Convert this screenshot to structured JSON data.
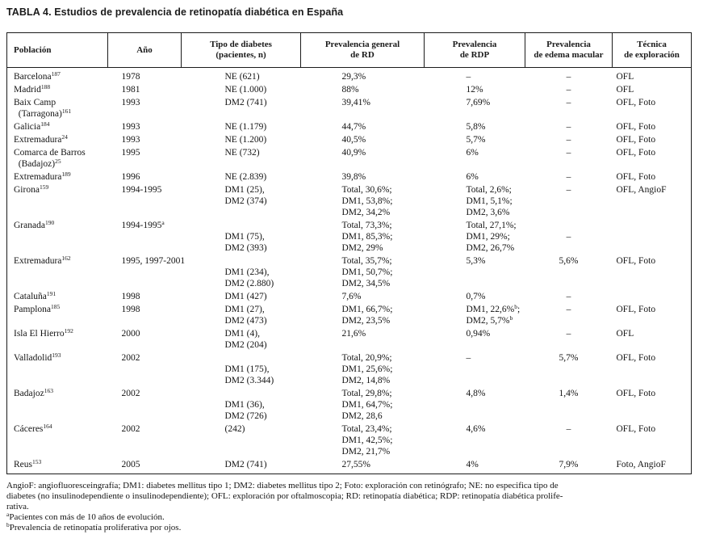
{
  "title": "TABLA 4. Estudios de prevalencia de retinopatía diabética en España",
  "table": {
    "columns": [
      {
        "id": "poblacion",
        "label_lines": [
          "Población"
        ]
      },
      {
        "id": "ano",
        "label_lines": [
          "Año"
        ]
      },
      {
        "id": "tipo",
        "label_lines": [
          "Tipo de diabetes",
          "(pacientes, n)"
        ]
      },
      {
        "id": "rd",
        "label_lines": [
          "Prevalencia general",
          "de RD"
        ]
      },
      {
        "id": "rdp",
        "label_lines": [
          "Prevalencia",
          "de RDP"
        ]
      },
      {
        "id": "edema",
        "label_lines": [
          "Prevalencia",
          "de edema macular"
        ]
      },
      {
        "id": "tecnica",
        "label_lines": [
          "Técnica",
          "de exploración"
        ]
      }
    ],
    "rows": [
      {
        "poblacion": [
          "Barcelona^{187}"
        ],
        "ano": [
          "1978"
        ],
        "tipo": [
          "NE (621)"
        ],
        "rd": [
          "29,3%"
        ],
        "rdp": [
          "–"
        ],
        "edema": [
          "–"
        ],
        "tecnica": [
          "OFL"
        ]
      },
      {
        "poblacion": [
          "Madrid^{188}"
        ],
        "ano": [
          "1981"
        ],
        "tipo": [
          "NE (1.000)"
        ],
        "rd": [
          "88%"
        ],
        "rdp": [
          "12%"
        ],
        "edema": [
          "–"
        ],
        "tecnica": [
          "OFL"
        ]
      },
      {
        "poblacion": [
          "Baix Camp",
          "  (Tarragona)^{161}"
        ],
        "ano": [
          "1993"
        ],
        "tipo": [
          "DM2 (741)"
        ],
        "rd": [
          "39,41%"
        ],
        "rdp": [
          "7,69%"
        ],
        "edema": [
          "–"
        ],
        "tecnica": [
          "OFL, Foto"
        ]
      },
      {
        "poblacion": [
          "Galicia^{184}"
        ],
        "ano": [
          "1993"
        ],
        "tipo": [
          "NE (1.179)"
        ],
        "rd": [
          "44,7%"
        ],
        "rdp": [
          "5,8%"
        ],
        "edema": [
          "–"
        ],
        "tecnica": [
          "OFL, Foto"
        ]
      },
      {
        "poblacion": [
          "Extremadura^{24}"
        ],
        "ano": [
          "1993"
        ],
        "tipo": [
          "NE (1.200)"
        ],
        "rd": [
          "40,5%"
        ],
        "rdp": [
          "5,7%"
        ],
        "edema": [
          "–"
        ],
        "tecnica": [
          "OFL, Foto"
        ]
      },
      {
        "poblacion": [
          "Comarca de Barros",
          "  (Badajoz)^{25}"
        ],
        "ano": [
          "1995"
        ],
        "tipo": [
          "NE (732)"
        ],
        "rd": [
          "40,9%"
        ],
        "rdp": [
          "6%"
        ],
        "edema": [
          "–"
        ],
        "tecnica": [
          "OFL, Foto"
        ]
      },
      {
        "poblacion": [
          "Extremadura^{189}"
        ],
        "ano": [
          "1996"
        ],
        "tipo": [
          "NE (2.839)"
        ],
        "rd": [
          "39,8%"
        ],
        "rdp": [
          "6%"
        ],
        "edema": [
          "–"
        ],
        "tecnica": [
          "OFL, Foto"
        ]
      },
      {
        "poblacion": [
          "Girona^{159}"
        ],
        "ano": [
          "1994-1995"
        ],
        "tipo": [
          "DM1 (25),",
          "DM2 (374)"
        ],
        "rd": [
          "Total, 30,6%;",
          "DM1, 53,8%;",
          "DM2, 34,2%"
        ],
        "rdp": [
          "Total, 2,6%;",
          "DM1, 5,1%;",
          "DM2, 3,6%"
        ],
        "edema": [
          "–"
        ],
        "tecnica": [
          "OFL, AngioF"
        ]
      },
      {
        "poblacion": [
          "Granada^{190}"
        ],
        "ano": [
          "1994-1995^{a}"
        ],
        "tipo": [
          "",
          "DM1 (75),",
          "DM2 (393)"
        ],
        "rd": [
          "Total, 73,3%;",
          "DM1, 85,3%;",
          "DM2, 29%"
        ],
        "rdp": [
          "Total, 27,1%;",
          "DM1, 29%;",
          "DM2, 26,7%"
        ],
        "edema": [
          "",
          "–"
        ],
        "tecnica": []
      },
      {
        "poblacion": [
          "Extremadura^{162}"
        ],
        "ano": [
          "1995, 1997-2001"
        ],
        "tipo": [
          "",
          "DM1 (234),",
          "DM2 (2.880)"
        ],
        "rd": [
          "Total, 35,7%;",
          "DM1, 50,7%;",
          "DM2, 34,5%"
        ],
        "rdp": [
          "5,3%"
        ],
        "edema": [
          "5,6%"
        ],
        "tecnica": [
          "OFL, Foto"
        ]
      },
      {
        "poblacion": [
          "Cataluña^{191}"
        ],
        "ano": [
          "1998"
        ],
        "tipo": [
          "DM1 (427)"
        ],
        "rd": [
          "7,6%"
        ],
        "rdp": [
          "0,7%"
        ],
        "edema": [
          "–"
        ],
        "tecnica": []
      },
      {
        "poblacion": [
          "Pamplona^{185}"
        ],
        "ano": [
          "1998"
        ],
        "tipo": [
          "DM1 (27),",
          "DM2 (473)"
        ],
        "rd": [
          "DM1, 66,7%;",
          "DM2, 23,5%"
        ],
        "rdp": [
          "DM1, 22,6%^{b};",
          "DM2, 5,7%^{b}"
        ],
        "edema": [
          "–"
        ],
        "tecnica": [
          "OFL, Foto"
        ]
      },
      {
        "poblacion": [
          "Isla El Hierro^{192}"
        ],
        "ano": [
          "2000"
        ],
        "tipo": [
          "DM1 (4),",
          "DM2 (204)"
        ],
        "rd": [
          "21,6%"
        ],
        "rdp": [
          "0,94%"
        ],
        "edema": [
          "–"
        ],
        "tecnica": [
          "OFL"
        ]
      },
      {
        "poblacion": [
          "Valladolid^{193}"
        ],
        "ano": [
          "2002"
        ],
        "tipo": [
          "",
          "DM1 (175),",
          "DM2 (3.344)"
        ],
        "rd": [
          "Total, 20,9%;",
          "DM1, 25,6%;",
          "DM2, 14,8%"
        ],
        "rdp": [
          "–"
        ],
        "edema": [
          "5,7%"
        ],
        "tecnica": [
          "OFL, Foto"
        ]
      },
      {
        "poblacion": [
          "Badajoz^{163}"
        ],
        "ano": [
          "2002"
        ],
        "tipo": [
          "",
          "DM1 (36),",
          "DM2 (726)"
        ],
        "rd": [
          "Total, 29,8%;",
          "DM1, 64,7%;",
          "DM2, 28,6"
        ],
        "rdp": [
          "4,8%"
        ],
        "edema": [
          "1,4%"
        ],
        "tecnica": [
          "OFL, Foto"
        ]
      },
      {
        "poblacion": [
          "Cáceres^{164}"
        ],
        "ano": [
          "2002"
        ],
        "tipo": [
          "(242)"
        ],
        "rd": [
          "Total, 23,4%;",
          "DM1, 42,5%;",
          "DM2, 21,7%"
        ],
        "rdp": [
          "4,6%"
        ],
        "edema": [
          "–"
        ],
        "tecnica": [
          "OFL, Foto"
        ]
      },
      {
        "poblacion": [
          "Reus^{153}"
        ],
        "ano": [
          "2005"
        ],
        "tipo": [
          "DM2 (741)"
        ],
        "rd": [
          "27,55%"
        ],
        "rdp": [
          "4%"
        ],
        "edema": [
          "7,9%"
        ],
        "tecnica": [
          "Foto, AngioF"
        ]
      }
    ]
  },
  "footnotes": [
    "AngioF: angiofluoresceingrafía; DM1: diabetes mellitus tipo 1; DM2: diabetes mellitus tipo 2; Foto: exploración con retinógrafo; NE: no especifica tipo de",
    "diabetes (no insulinodependiente o insulinodependiente); OFL: exploración por oftalmoscopia; RD: retinopatía diabética; RDP: retinopatía diabética prolife-",
    "rativa.",
    "^{a}Pacientes con más de 10 años de evolución.",
    "^{b}Prevalencia de retinopatía proliferativa por ojos."
  ]
}
